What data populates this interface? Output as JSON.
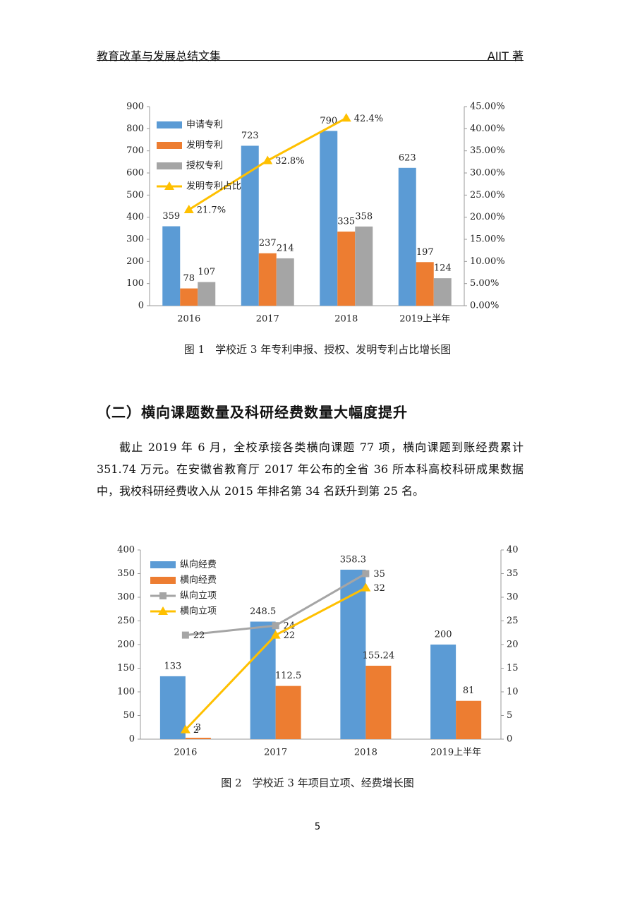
{
  "header": {
    "title": "教育改革与发展总结文集",
    "author": "AIIT 著"
  },
  "chart_data": [
    {
      "type": "bar",
      "caption": "图 1　学校近 3 年专利申报、授权、发明专利占比增长图",
      "categories": [
        "2016",
        "2017",
        "2018",
        "2019上半年"
      ],
      "series": [
        {
          "name": "申请专利",
          "color": "#5b9bd5",
          "values": [
            359,
            723,
            790,
            623
          ]
        },
        {
          "name": "发明专利",
          "color": "#ed7d31",
          "values": [
            78,
            237,
            335,
            197
          ]
        },
        {
          "name": "授权专利",
          "color": "#a5a5a5",
          "values": [
            107,
            214,
            358,
            124
          ]
        },
        {
          "name": "发明专利占比",
          "color": "#ffc000",
          "type": "line",
          "axis": "y2",
          "marker": "triangle",
          "values": [
            21.7,
            32.8,
            42.4,
            null
          ],
          "value_labels": [
            "21.7%",
            "32.8%",
            "42.4%",
            null
          ]
        }
      ],
      "ylim": [
        0,
        900
      ],
      "yticks": [
        0,
        100,
        200,
        300,
        400,
        500,
        600,
        700,
        800,
        900
      ],
      "y2lim": [
        0,
        45
      ],
      "y2ticks": [
        {
          "value": 0,
          "label": "0.00%"
        },
        {
          "value": 5,
          "label": "5.00%"
        },
        {
          "value": 10,
          "label": "10.00%"
        },
        {
          "value": 15,
          "label": "15.00%"
        },
        {
          "value": 20,
          "label": "20.00%"
        },
        {
          "value": 25,
          "label": "25.00%"
        },
        {
          "value": 30,
          "label": "30.00%"
        },
        {
          "value": 35,
          "label": "35.00%"
        },
        {
          "value": 40,
          "label": "40.00%"
        },
        {
          "value": 45,
          "label": "45.00%"
        }
      ],
      "legend": "top-left",
      "grid": false
    },
    {
      "type": "bar",
      "caption": "图 2　学校近 3 年项目立项、经费增长图",
      "categories": [
        "2016",
        "2017",
        "2018",
        "2019上半年"
      ],
      "series": [
        {
          "name": "纵向经费",
          "color": "#5b9bd5",
          "values": [
            133,
            248.5,
            358.3,
            200
          ]
        },
        {
          "name": "横向经费",
          "color": "#ed7d31",
          "values": [
            3,
            112.5,
            155.24,
            81
          ]
        },
        {
          "name": "纵向立项",
          "color": "#a5a5a5",
          "type": "line",
          "axis": "y2",
          "marker": "square",
          "values": [
            22,
            24,
            35,
            null
          ]
        },
        {
          "name": "横向立项",
          "color": "#ffc000",
          "type": "line",
          "axis": "y2",
          "marker": "triangle",
          "values": [
            2,
            22,
            32,
            null
          ]
        }
      ],
      "ylim": [
        0,
        400
      ],
      "yticks": [
        0,
        50,
        100,
        150,
        200,
        250,
        300,
        350,
        400
      ],
      "y2lim": [
        0,
        40
      ],
      "y2ticks": [
        0,
        5,
        10,
        15,
        20,
        25,
        30,
        35,
        40
      ],
      "legend": "top-left",
      "grid": false
    }
  ],
  "section": {
    "heading": "（二）横向课题数量及科研经费数量大幅度提升",
    "paragraph": "截止 2019 年 6 月，全校承接各类横向课题 77 项，横向课题到账经费累计 351.74 万元。在安徽省教育厅 2017 年公布的全省 36 所本科高校科研成果数据中，我校科研经费收入从 2015 年排名第 34 名跃升到第 25 名。"
  },
  "page_number": "5"
}
